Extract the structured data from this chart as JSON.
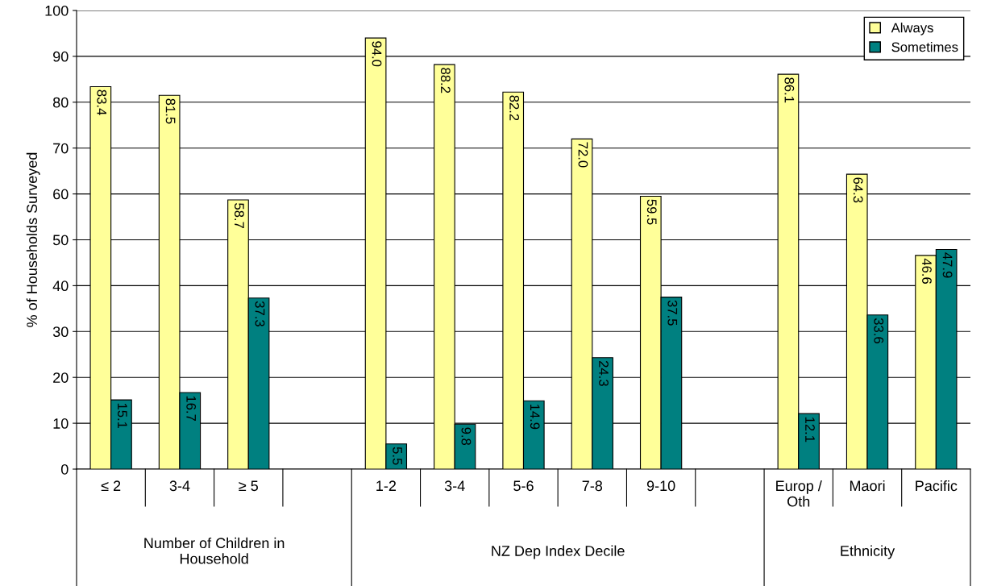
{
  "chart_data": {
    "type": "bar",
    "ylabel": "% of Households Surveyed",
    "categories": [
      "≤ 2",
      "3-4",
      "≥ 5",
      null,
      "1-2",
      "3-4",
      "5-6",
      "7-8",
      "9-10",
      null,
      "Europ /\nOth",
      "Maori",
      "Pacific"
    ],
    "series": [
      {
        "name": "Always",
        "color": "#ffff99",
        "values": [
          83.4,
          81.5,
          58.7,
          null,
          94.0,
          88.2,
          82.2,
          72.0,
          59.5,
          null,
          86.1,
          64.3,
          46.6
        ],
        "value_labels": [
          "83.4",
          "81.5",
          "58.7",
          null,
          "94.0",
          "88.2",
          "82.2",
          "72.0",
          "59.5",
          null,
          "86.1",
          "64.3",
          "46.6"
        ]
      },
      {
        "name": "Sometimes",
        "color": "#008080",
        "values": [
          15.1,
          16.7,
          37.3,
          null,
          5.5,
          9.8,
          14.9,
          24.3,
          37.5,
          null,
          12.1,
          33.6,
          47.9
        ],
        "value_labels": [
          "15.1",
          "16.7",
          "37.3",
          null,
          "5.5",
          "9.8",
          "14.9",
          "24.3",
          "37.5",
          null,
          "12.1",
          "33.6",
          "47.9"
        ]
      }
    ],
    "ylim": [
      0,
      100
    ],
    "yticks": [
      0,
      10,
      20,
      30,
      40,
      50,
      60,
      70,
      80,
      90,
      100
    ],
    "grid": "y",
    "legend": "top right",
    "annotations": [
      "Number of Children in\nHousehold",
      "NZ Dep Index Decile",
      "Ethnicity"
    ]
  }
}
